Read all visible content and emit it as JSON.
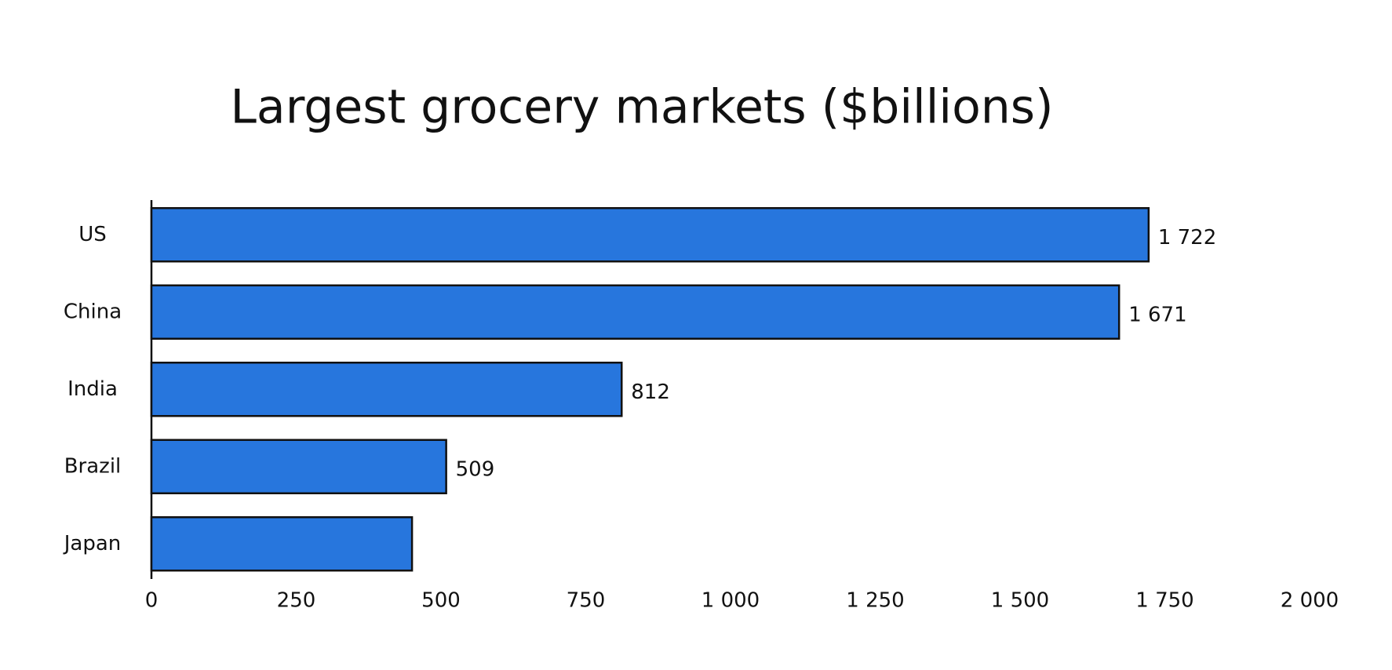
{
  "chart_data": {
    "type": "bar",
    "orientation": "horizontal",
    "title": "Largest grocery markets ($billions)",
    "categories": [
      "US",
      "China",
      "India",
      "Brazil",
      "Japan"
    ],
    "values": [
      1722,
      1671,
      812,
      509,
      450
    ],
    "value_labels": [
      "1 722",
      "1 671",
      "812",
      "509",
      null
    ],
    "color": "#2776dd",
    "xlim": [
      0,
      2000
    ],
    "xticks": [
      0,
      250,
      500,
      750,
      {
        "value": 1000,
        "label": "1 000"
      },
      {
        "value": 1250,
        "label": "1 250"
      },
      {
        "value": 1500,
        "label": "1 500"
      },
      {
        "value": 1750,
        "label": "1 750"
      },
      {
        "value": 2000,
        "label": "2 000"
      }
    ],
    "grid": false
  }
}
